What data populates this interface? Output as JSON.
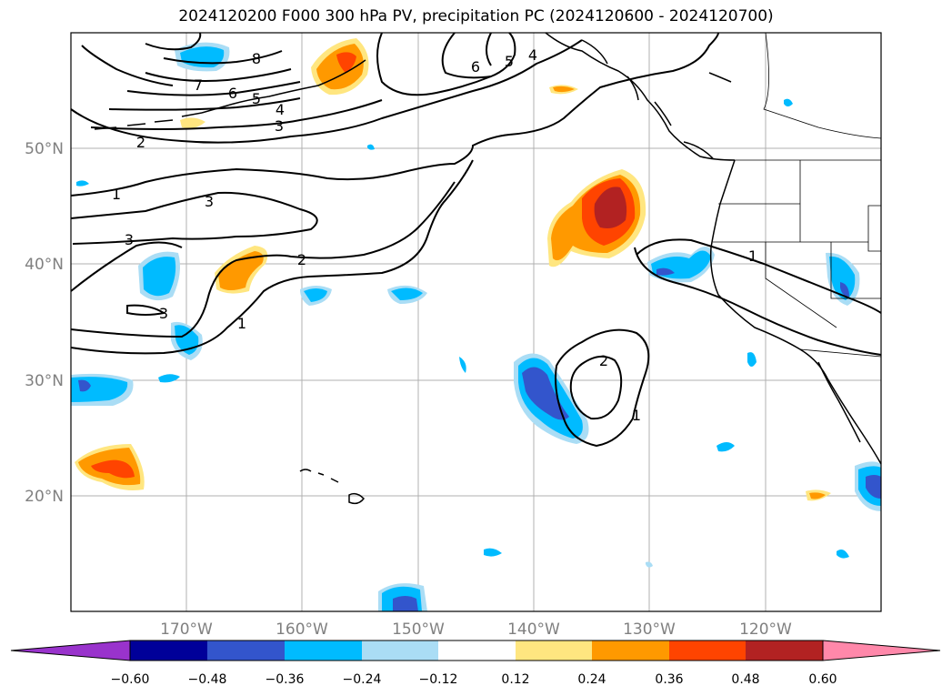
{
  "title": "2024120200 F000 300 hPa PV, precipitation PC (2024120600 - 2024120700)",
  "lat_ticks": [
    "50°N",
    "40°N",
    "30°N",
    "20°N"
  ],
  "lon_ticks": [
    "170°W",
    "160°W",
    "150°W",
    "140°W",
    "130°W",
    "120°W"
  ],
  "colorbar": {
    "tick_labels": [
      "−0.60",
      "−0.48",
      "−0.36",
      "−0.24",
      "−0.12",
      "0.12",
      "0.24",
      "0.36",
      "0.48",
      "0.60"
    ],
    "colors": [
      "#9933cc",
      "#000099",
      "#3355cc",
      "#00bbff",
      "#aaddf5",
      "#ffffff",
      "#ffe680",
      "#ff9900",
      "#ff4400",
      "#b22222",
      "#ff88aa"
    ]
  },
  "pv_contour_labels": [
    "8",
    "7",
    "6",
    "5",
    "4",
    "3",
    "2",
    "1",
    "3",
    "3",
    "3",
    "2",
    "1",
    "6",
    "5",
    "4",
    "1",
    "2",
    "1"
  ],
  "colors": {
    "shade_pos_light": "#ffe680",
    "shade_pos_orange": "#ff9900",
    "shade_pos_red": "#ff4400",
    "shade_pos_dark": "#b22222",
    "shade_neg_light": "#aaddf5",
    "shade_neg_cyan": "#00bbff",
    "shade_neg_blue": "#3355cc",
    "grid": "#b0b0b0"
  }
}
